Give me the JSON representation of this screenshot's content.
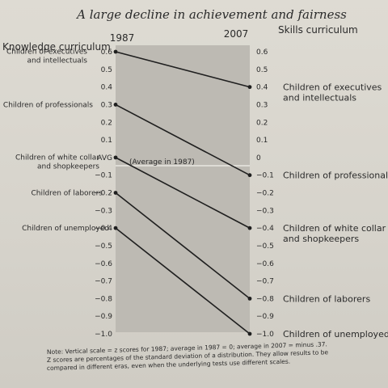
{
  "chart_data": {
    "type": "slope",
    "title": "A large decline in achievement and fairness",
    "left_header": "Knowledge curriculum",
    "right_header": "Skills curriculum",
    "left_year": "1987",
    "right_year": "2007",
    "ylim": [
      -1.0,
      0.6
    ],
    "y_ticks": [
      0.6,
      0.5,
      0.4,
      0.3,
      0.2,
      0.1,
      0,
      -0.1,
      -0.2,
      -0.3,
      -0.4,
      -0.5,
      -0.6,
      -0.7,
      -0.8,
      -0.9,
      -1.0
    ],
    "left_tick_labels": [
      "0.6",
      "0.5",
      "0.4",
      "0.3",
      "0.2",
      "0.1",
      "AVG",
      "−0.1",
      "−0.2",
      "−0.3",
      "−0.4",
      "−0.5",
      "−0.6",
      "−0.7",
      "−0.8",
      "−0.9",
      "−1.0"
    ],
    "right_tick_labels": [
      "0.6",
      "0.5",
      "0.4",
      "0.3",
      "0.2",
      "0.1",
      "0",
      "−0.1",
      "−0.2",
      "−0.3",
      "−0.4",
      "−0.5",
      "−0.6",
      "−0.7",
      "−0.8",
      "−0.9",
      "−1.0"
    ],
    "average_annotation": "(Average in 1987)",
    "series": [
      {
        "left_label": [
          "Children of executives",
          "and intellectuals"
        ],
        "right_label": [
          "Children of executives",
          "and intellectuals"
        ],
        "y1987": 0.6,
        "y2007": 0.4
      },
      {
        "left_label": [
          "Children of professionals"
        ],
        "right_label": [
          "Children of professionals"
        ],
        "y1987": 0.3,
        "y2007": -0.1
      },
      {
        "left_label": [
          "Children of white collar",
          "and shopkeepers"
        ],
        "right_label": [
          "Children of white collar",
          "and shopkeepers"
        ],
        "y1987": 0.0,
        "y2007": -0.4
      },
      {
        "left_label": [
          "Children of laborers"
        ],
        "right_label": [
          "Children of laborers"
        ],
        "y1987": -0.2,
        "y2007": -0.8
      },
      {
        "left_label": [
          "Children of unemployed"
        ],
        "right_label": [
          "Children of unemployed"
        ],
        "y1987": -0.4,
        "y2007": -1.0
      }
    ],
    "note": [
      "Note: Vertical scale = z scores for 1987; average in 1987 = 0; average in 2007 = minus .37.",
      "Z scores are percentages of the standard deviation of a distribution. They allow results to be",
      "compared in different eras, even when the underlying tests use different scales."
    ],
    "colors": {
      "panel": "#bdbab3",
      "line": "#1f1f1f",
      "text": "#2a2a2a"
    }
  }
}
